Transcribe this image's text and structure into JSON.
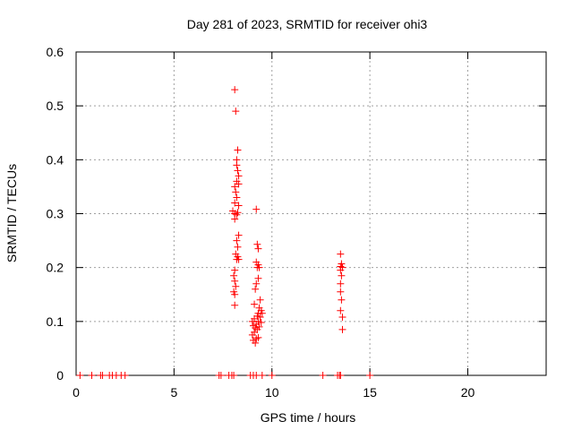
{
  "chart_data": {
    "type": "scatter",
    "title": "Day 281 of 2023, SRMTID for receiver ohi3",
    "xlabel": "GPS time / hours",
    "ylabel": "SRMTID / TECUs",
    "xlim": [
      0,
      24
    ],
    "ylim": [
      0,
      0.6
    ],
    "xticks": [
      0,
      5,
      10,
      15,
      20
    ],
    "xtick_labels": [
      "0",
      "5",
      "10",
      "15",
      "20"
    ],
    "yticks": [
      0,
      0.1,
      0.2,
      0.3,
      0.4,
      0.5,
      0.6
    ],
    "ytick_labels": [
      "0",
      "0.1",
      "0.2",
      "0.3",
      "0.4",
      "0.5",
      "0.6"
    ],
    "grid": true,
    "marker": "+",
    "color": "#ff0000",
    "series": [
      {
        "name": "SRMTID",
        "points": [
          [
            0.2,
            0
          ],
          [
            0.8,
            0
          ],
          [
            1.25,
            0
          ],
          [
            1.35,
            0
          ],
          [
            1.7,
            0
          ],
          [
            1.85,
            0
          ],
          [
            2.05,
            0
          ],
          [
            2.3,
            0
          ],
          [
            2.5,
            0
          ],
          [
            7.3,
            0
          ],
          [
            7.4,
            0
          ],
          [
            7.8,
            0
          ],
          [
            7.95,
            0
          ],
          [
            8.05,
            0
          ],
          [
            8.9,
            0
          ],
          [
            9.05,
            0
          ],
          [
            9.2,
            0
          ],
          [
            9.5,
            0
          ],
          [
            10.0,
            0
          ],
          [
            12.6,
            0
          ],
          [
            13.35,
            0
          ],
          [
            13.45,
            0
          ],
          [
            13.5,
            0
          ],
          [
            15.0,
            0
          ],
          [
            8.1,
            0.53
          ],
          [
            8.15,
            0.49
          ],
          [
            8.25,
            0.418
          ],
          [
            8.2,
            0.4
          ],
          [
            8.2,
            0.39
          ],
          [
            8.25,
            0.38
          ],
          [
            8.3,
            0.37
          ],
          [
            8.2,
            0.36
          ],
          [
            8.3,
            0.355
          ],
          [
            8.1,
            0.35
          ],
          [
            8.15,
            0.34
          ],
          [
            8.2,
            0.33
          ],
          [
            8.1,
            0.32
          ],
          [
            8.3,
            0.315
          ],
          [
            8.0,
            0.305
          ],
          [
            8.1,
            0.3
          ],
          [
            8.2,
            0.298
          ],
          [
            8.25,
            0.302
          ],
          [
            8.1,
            0.29
          ],
          [
            8.3,
            0.26
          ],
          [
            8.2,
            0.25
          ],
          [
            8.25,
            0.238
          ],
          [
            8.15,
            0.225
          ],
          [
            8.25,
            0.22
          ],
          [
            8.2,
            0.215
          ],
          [
            8.3,
            0.215
          ],
          [
            8.1,
            0.195
          ],
          [
            8.05,
            0.185
          ],
          [
            8.1,
            0.175
          ],
          [
            8.15,
            0.165
          ],
          [
            8.05,
            0.155
          ],
          [
            8.1,
            0.15
          ],
          [
            8.1,
            0.13
          ],
          [
            9.2,
            0.308
          ],
          [
            9.25,
            0.243
          ],
          [
            9.3,
            0.235
          ],
          [
            9.2,
            0.21
          ],
          [
            9.3,
            0.205
          ],
          [
            9.25,
            0.2
          ],
          [
            9.35,
            0.2
          ],
          [
            9.3,
            0.18
          ],
          [
            9.2,
            0.17
          ],
          [
            9.15,
            0.16
          ],
          [
            9.4,
            0.14
          ],
          [
            9.1,
            0.132
          ],
          [
            9.35,
            0.125
          ],
          [
            9.45,
            0.12
          ],
          [
            9.3,
            0.115
          ],
          [
            9.5,
            0.115
          ],
          [
            9.25,
            0.11
          ],
          [
            9.4,
            0.108
          ],
          [
            9.1,
            0.105
          ],
          [
            9.3,
            0.1
          ],
          [
            9.0,
            0.1
          ],
          [
            9.45,
            0.098
          ],
          [
            9.2,
            0.095
          ],
          [
            9.05,
            0.092
          ],
          [
            9.35,
            0.09
          ],
          [
            9.15,
            0.088
          ],
          [
            9.25,
            0.085
          ],
          [
            9.1,
            0.08
          ],
          [
            9.0,
            0.075
          ],
          [
            9.3,
            0.07
          ],
          [
            9.2,
            0.068
          ],
          [
            9.05,
            0.065
          ],
          [
            9.15,
            0.06
          ],
          [
            13.5,
            0.225
          ],
          [
            13.55,
            0.207
          ],
          [
            13.5,
            0.202
          ],
          [
            13.6,
            0.2
          ],
          [
            13.5,
            0.195
          ],
          [
            13.55,
            0.185
          ],
          [
            13.5,
            0.17
          ],
          [
            13.5,
            0.155
          ],
          [
            13.55,
            0.14
          ],
          [
            13.5,
            0.12
          ],
          [
            13.6,
            0.108
          ],
          [
            13.6,
            0.085
          ]
        ]
      }
    ]
  }
}
